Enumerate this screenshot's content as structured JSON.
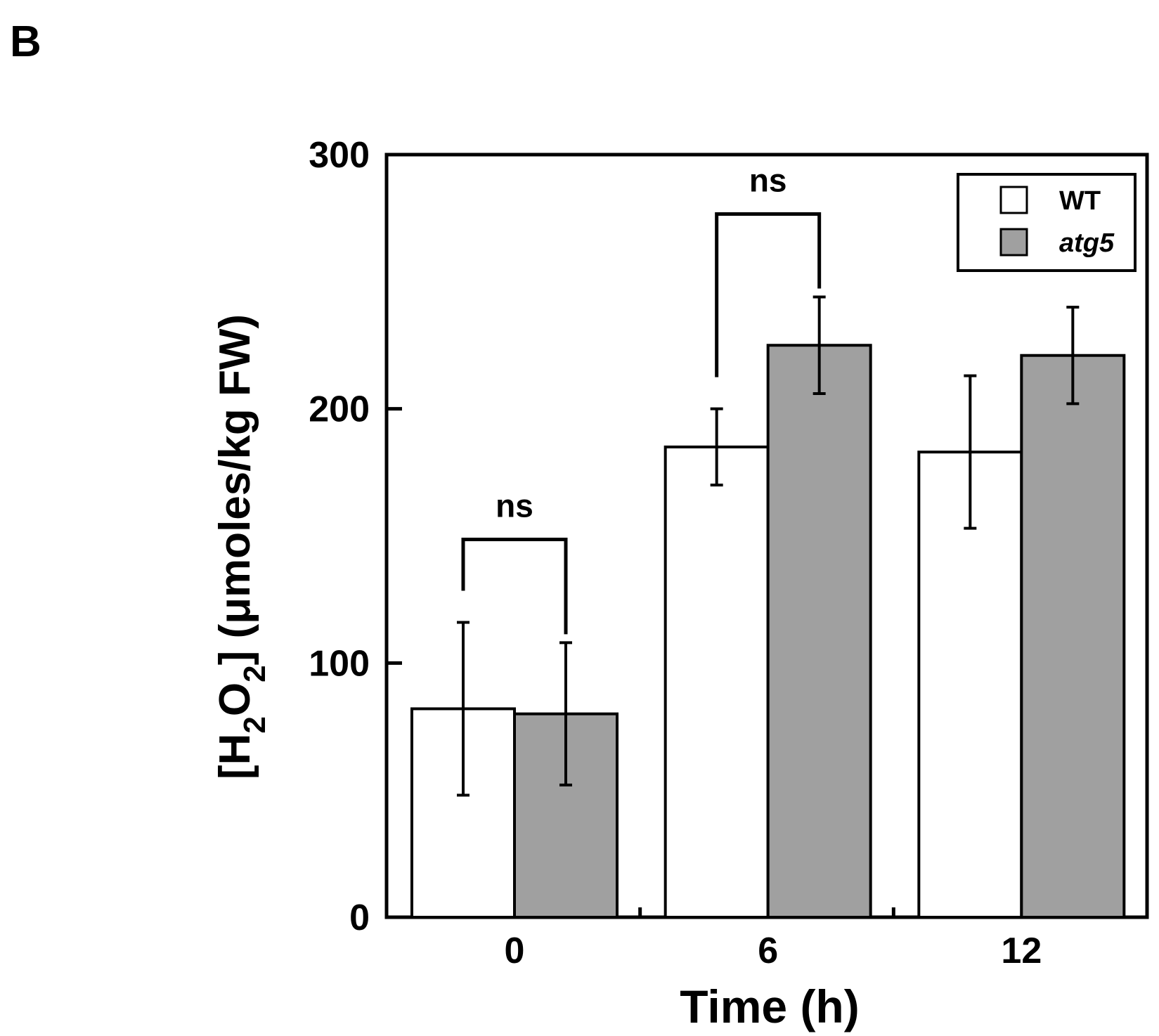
{
  "panel_label": "B",
  "chart_data": {
    "type": "bar",
    "title": "",
    "xlabel": "Time (h)",
    "ylabel": {
      "prefix": "[H",
      "sub1": "2",
      "middle": "O",
      "sub2": "2",
      "suffix": "] (μmoles/kg FW)"
    },
    "categories": [
      "0",
      "6",
      "12"
    ],
    "ylim": [
      0,
      300
    ],
    "yticks": [
      "0",
      "100",
      "200",
      "300"
    ],
    "ytick_values": [
      0,
      100,
      200,
      300
    ],
    "series": [
      {
        "name": "WT",
        "color": "#ffffff",
        "italic": false,
        "values": [
          82,
          185,
          183
        ],
        "errors": [
          34,
          15,
          30
        ]
      },
      {
        "name": "atg5",
        "color": "#a0a0a0",
        "italic": true,
        "values": [
          80,
          225,
          221
        ],
        "errors": [
          28,
          19,
          19
        ]
      }
    ],
    "legend": {
      "position": "top-right"
    },
    "annotations": [
      {
        "text": "ns",
        "category_index": 0
      },
      {
        "text": "ns",
        "category_index": 1
      }
    ],
    "grid": false
  }
}
